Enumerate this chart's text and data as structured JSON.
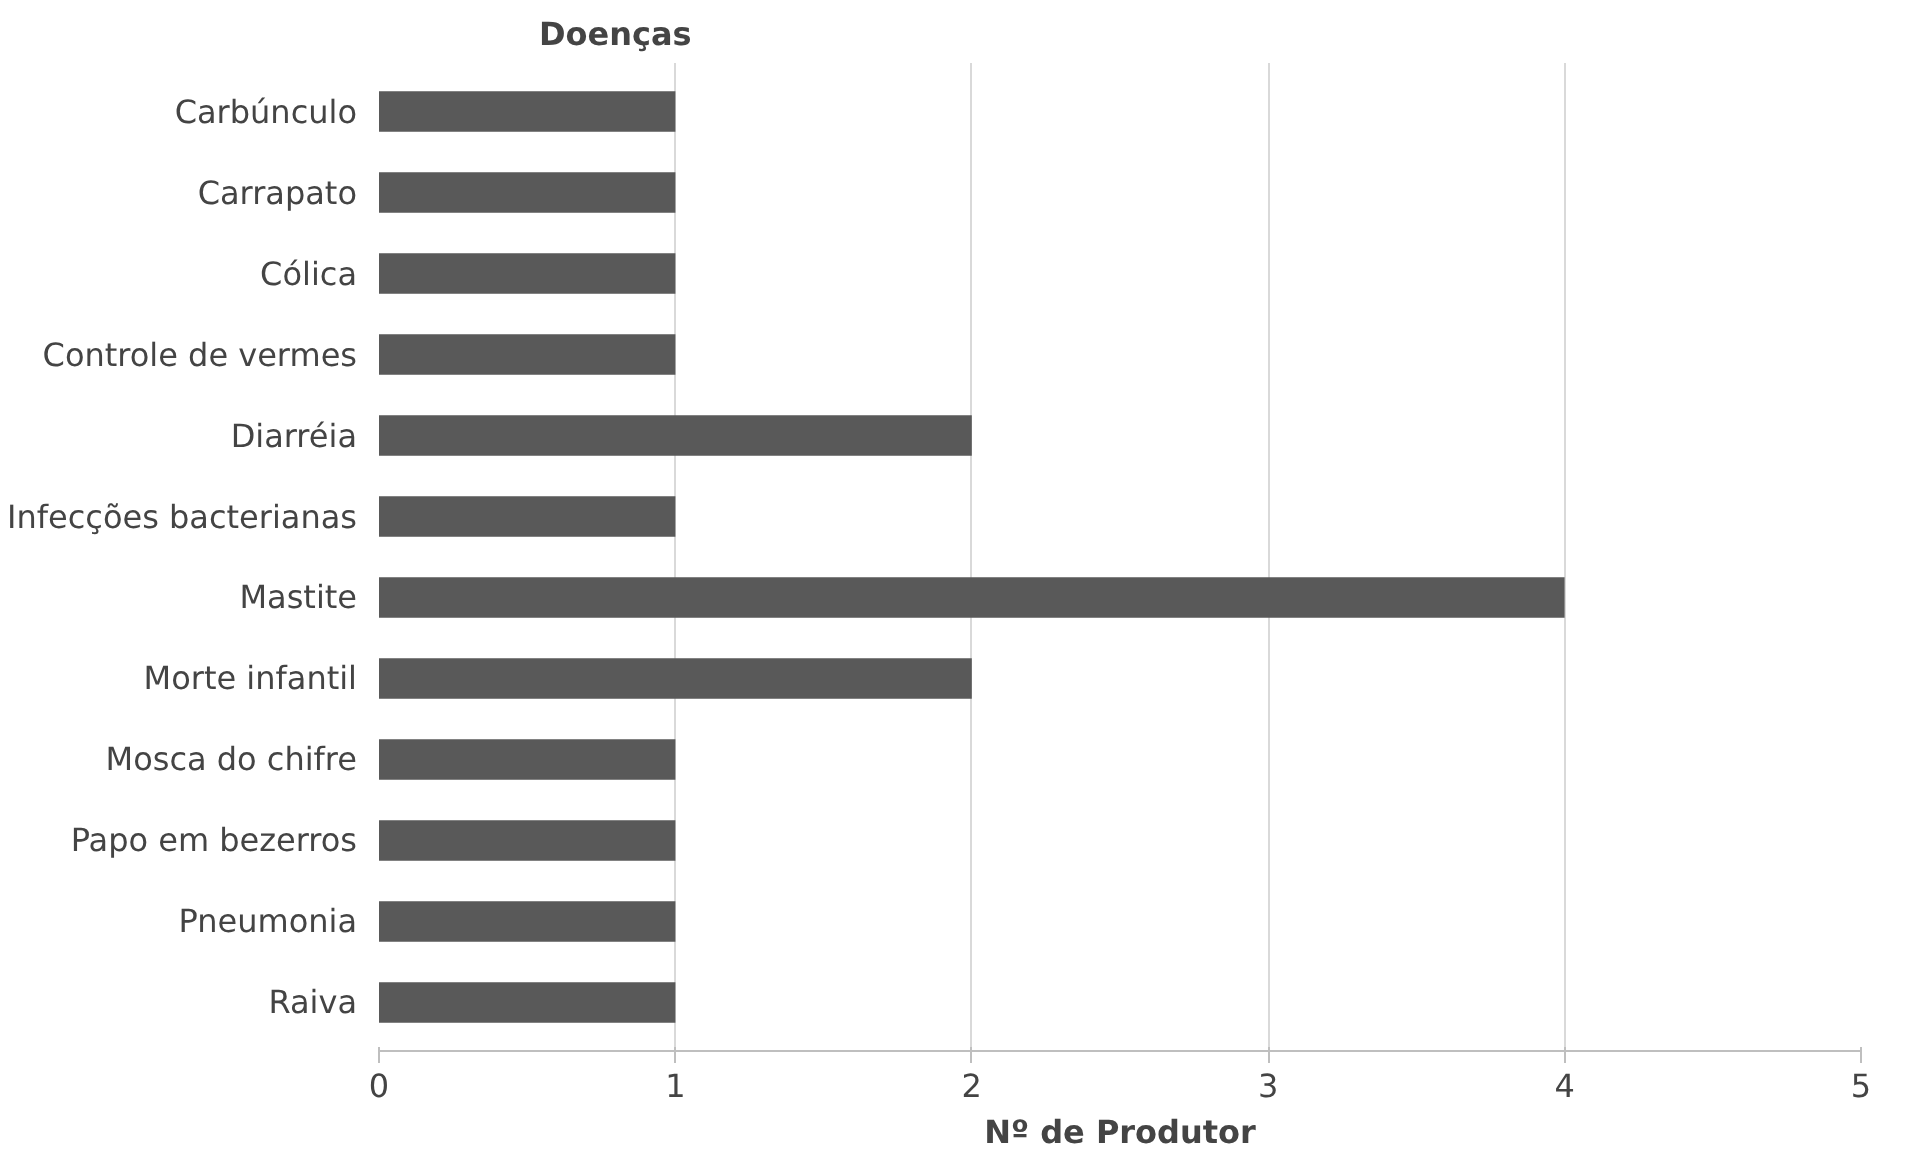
{
  "chart_data": {
    "type": "bar",
    "orientation": "horizontal",
    "ylabel": "Doenças",
    "xlabel": "Nº de Produtor",
    "categories": [
      "Carbúnculo",
      "Carrapato",
      "Cólica",
      "Controle de vermes",
      "Diarréia",
      "Infecções bacterianas",
      "Mastite",
      "Morte infantil",
      "Mosca do chifre",
      "Papo em bezerros",
      "Pneumonia",
      "Raiva"
    ],
    "values": [
      1,
      1,
      1,
      1,
      2,
      1,
      4,
      2,
      1,
      1,
      1,
      1
    ],
    "color": "#595959",
    "xlim": [
      0,
      5
    ],
    "xticks": [
      0,
      1,
      2,
      3,
      4,
      5
    ],
    "grid": "x"
  }
}
